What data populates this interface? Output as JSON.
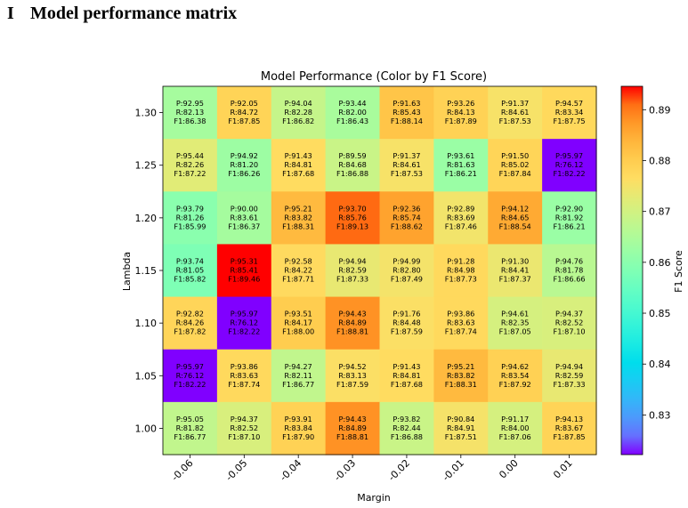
{
  "section": {
    "number": "I",
    "title": "Model performance matrix"
  },
  "chart_data": {
    "type": "heatmap",
    "title": "Model Performance (Color by F1 Score)",
    "xlabel": "Margin",
    "ylabel": "Lambda",
    "colorbar_label": "F1 Score",
    "colormap": "rainbow",
    "color_range": [
      0.8222,
      0.8946
    ],
    "colorbar_ticks": [
      "0.83",
      "0.84",
      "0.85",
      "0.86",
      "0.87",
      "0.88",
      "0.89"
    ],
    "colorbar_tick_values": [
      0.83,
      0.84,
      0.85,
      0.86,
      0.87,
      0.88,
      0.89
    ],
    "x_tick_labels": [
      "-0.06",
      "-0.05",
      "-0.04",
      "-0.03",
      "-0.02",
      "-0.01",
      "0.00",
      "0.01"
    ],
    "y_tick_labels": [
      "1.30",
      "1.25",
      "1.20",
      "1.15",
      "1.10",
      "1.05",
      "1.00"
    ],
    "cells": [
      [
        {
          "p": "P:92.95",
          "r": "R:82.13",
          "f": "F1:86.38",
          "f1": 86.38
        },
        {
          "p": "P:92.05",
          "r": "R:84.72",
          "f": "F1:87.85",
          "f1": 87.85
        },
        {
          "p": "P:94.04",
          "r": "R:82.28",
          "f": "F1:86.82",
          "f1": 86.82
        },
        {
          "p": "P:93.44",
          "r": "R:82.00",
          "f": "F1:86.43",
          "f1": 86.43
        },
        {
          "p": "P:91.63",
          "r": "R:85.43",
          "f": "F1:88.14",
          "f1": 88.14
        },
        {
          "p": "P:93.26",
          "r": "R:84.13",
          "f": "F1:87.89",
          "f1": 87.89
        },
        {
          "p": "P:91.37",
          "r": "R:84.61",
          "f": "F1:87.53",
          "f1": 87.53
        },
        {
          "p": "P:94.57",
          "r": "R:83.34",
          "f": "F1:87.75",
          "f1": 87.75
        }
      ],
      [
        {
          "p": "P:95.44",
          "r": "R:82.26",
          "f": "F1:87.22",
          "f1": 87.22
        },
        {
          "p": "P:94.92",
          "r": "R:81.20",
          "f": "F1:86.26",
          "f1": 86.26
        },
        {
          "p": "P:91.43",
          "r": "R:84.81",
          "f": "F1:87.68",
          "f1": 87.68
        },
        {
          "p": "P:89.59",
          "r": "R:84.68",
          "f": "F1:86.88",
          "f1": 86.88
        },
        {
          "p": "P:91.37",
          "r": "R:84.61",
          "f": "F1:87.53",
          "f1": 87.53
        },
        {
          "p": "P:93.61",
          "r": "R:81.63",
          "f": "F1:86.21",
          "f1": 86.21
        },
        {
          "p": "P:91.50",
          "r": "R:85.02",
          "f": "F1:87.84",
          "f1": 87.84
        },
        {
          "p": "P:95.97",
          "r": "R:76.12",
          "f": "F1:82.22",
          "f1": 82.22
        }
      ],
      [
        {
          "p": "P:93.79",
          "r": "R:81.26",
          "f": "F1:85.99",
          "f1": 85.99
        },
        {
          "p": "P:90.00",
          "r": "R:83.61",
          "f": "F1:86.37",
          "f1": 86.37
        },
        {
          "p": "P:95.21",
          "r": "R:83.82",
          "f": "F1:88.31",
          "f1": 88.31
        },
        {
          "p": "P:93.70",
          "r": "R:85.76",
          "f": "F1:89.13",
          "f1": 89.13
        },
        {
          "p": "P:92.36",
          "r": "R:85.74",
          "f": "F1:88.62",
          "f1": 88.62
        },
        {
          "p": "P:92.89",
          "r": "R:83.69",
          "f": "F1:87.46",
          "f1": 87.46
        },
        {
          "p": "P:94.12",
          "r": "R:84.65",
          "f": "F1:88.54",
          "f1": 88.54
        },
        {
          "p": "P:92.90",
          "r": "R:81.92",
          "f": "F1:86.21",
          "f1": 86.21
        }
      ],
      [
        {
          "p": "P:93.74",
          "r": "R:81.05",
          "f": "F1:85.82",
          "f1": 85.82
        },
        {
          "p": "P:95.31",
          "r": "R:85.41",
          "f": "F1:89.46",
          "f1": 89.46
        },
        {
          "p": "P:92.58",
          "r": "R:84.22",
          "f": "F1:87.71",
          "f1": 87.71
        },
        {
          "p": "P:94.94",
          "r": "R:82.59",
          "f": "F1:87.33",
          "f1": 87.33
        },
        {
          "p": "P:94.99",
          "r": "R:82.80",
          "f": "F1:87.49",
          "f1": 87.49
        },
        {
          "p": "P:91.28",
          "r": "R:84.98",
          "f": "F1:87.73",
          "f1": 87.73
        },
        {
          "p": "P:91.30",
          "r": "R:84.41",
          "f": "F1:87.37",
          "f1": 87.37
        },
        {
          "p": "P:94.76",
          "r": "R:81.78",
          "f": "F1:86.66",
          "f1": 86.66
        }
      ],
      [
        {
          "p": "P:92.82",
          "r": "R:84.26",
          "f": "F1:87.82",
          "f1": 87.82
        },
        {
          "p": "P:95.97",
          "r": "R:76.12",
          "f": "F1:82.22",
          "f1": 82.22
        },
        {
          "p": "P:93.51",
          "r": "R:84.17",
          "f": "F1:88.00",
          "f1": 88.0
        },
        {
          "p": "P:94.43",
          "r": "R:84.89",
          "f": "F1:88.81",
          "f1": 88.81
        },
        {
          "p": "P:91.76",
          "r": "R:84.48",
          "f": "F1:87.59",
          "f1": 87.59
        },
        {
          "p": "P:93.86",
          "r": "R:83.63",
          "f": "F1:87.74",
          "f1": 87.74
        },
        {
          "p": "P:94.61",
          "r": "R:82.35",
          "f": "F1:87.05",
          "f1": 87.05
        },
        {
          "p": "P:94.37",
          "r": "R:82.52",
          "f": "F1:87.10",
          "f1": 87.1
        }
      ],
      [
        {
          "p": "P:95.97",
          "r": "R:76.12",
          "f": "F1:82.22",
          "f1": 82.22
        },
        {
          "p": "P:93.86",
          "r": "R:83.63",
          "f": "F1:87.74",
          "f1": 87.74
        },
        {
          "p": "P:94.27",
          "r": "R:82.11",
          "f": "F1:86.77",
          "f1": 86.77
        },
        {
          "p": "P:94.52",
          "r": "R:83.13",
          "f": "F1:87.59",
          "f1": 87.59
        },
        {
          "p": "P:91.43",
          "r": "R:84.81",
          "f": "F1:87.68",
          "f1": 87.68
        },
        {
          "p": "P:95.21",
          "r": "R:83.82",
          "f": "F1:88.31",
          "f1": 88.31
        },
        {
          "p": "P:94.62",
          "r": "R:83.54",
          "f": "F1:87.92",
          "f1": 87.92
        },
        {
          "p": "P:94.94",
          "r": "R:82.59",
          "f": "F1:87.33",
          "f1": 87.33
        }
      ],
      [
        {
          "p": "P:95.05",
          "r": "R:81.82",
          "f": "F1:86.77",
          "f1": 86.77
        },
        {
          "p": "P:94.37",
          "r": "R:82.52",
          "f": "F1:87.10",
          "f1": 87.1
        },
        {
          "p": "P:93.91",
          "r": "R:83.84",
          "f": "F1:87.90",
          "f1": 87.9
        },
        {
          "p": "P:94.43",
          "r": "R:84.89",
          "f": "F1:88.81",
          "f1": 88.81
        },
        {
          "p": "P:93.82",
          "r": "R:82.44",
          "f": "F1:86.88",
          "f1": 86.88
        },
        {
          "p": "P:90.84",
          "r": "R:84.91",
          "f": "F1:87.51",
          "f1": 87.51
        },
        {
          "p": "P:91.17",
          "r": "R:84.00",
          "f": "F1:87.06",
          "f1": 87.06
        },
        {
          "p": "P:94.13",
          "r": "R:83.67",
          "f": "F1:87.85",
          "f1": 87.85
        }
      ]
    ]
  }
}
